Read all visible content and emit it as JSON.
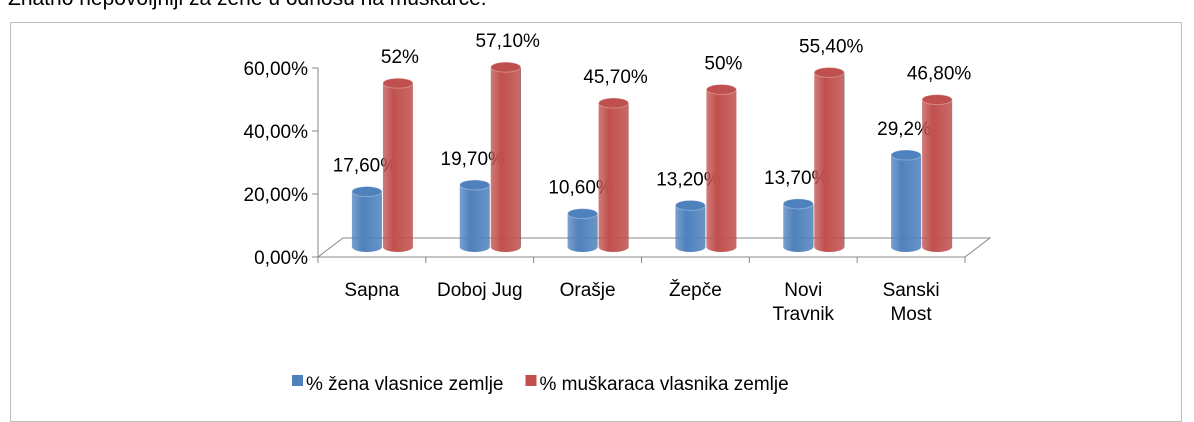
{
  "caption": "Znatno nepovoljniji za žene u odnosu na muškarce.",
  "chart_data": {
    "type": "bar3d",
    "categories": [
      "Sapna",
      "Doboj Jug",
      "Orašje",
      "Žepče",
      "Novi Travnik",
      "Sanski Most"
    ],
    "series": [
      {
        "name": "% žena vlasnice zemlje",
        "color": "#4f81bd",
        "values": [
          17.6,
          19.7,
          10.6,
          13.2,
          13.7,
          29.2
        ],
        "value_labels": [
          "17,60%",
          "19,70%",
          "10,60%",
          "13,20%",
          "13,70%",
          "29,2%"
        ]
      },
      {
        "name": "% muškaraca vlasnika zemlje",
        "color": "#c0504d",
        "values": [
          52,
          57.1,
          45.7,
          50,
          55.4,
          46.8
        ],
        "value_labels": [
          "52%",
          "57,10%",
          "45,70%",
          "50%",
          "55,40%",
          "46,80%"
        ]
      }
    ],
    "ylim": [
      0,
      60
    ],
    "yticks": [
      {
        "value": 0,
        "label": "0,00%"
      },
      {
        "value": 20,
        "label": "20,00%"
      },
      {
        "value": 40,
        "label": "40,00%"
      },
      {
        "value": 60,
        "label": "60,00%"
      }
    ],
    "legend": "bottom"
  }
}
